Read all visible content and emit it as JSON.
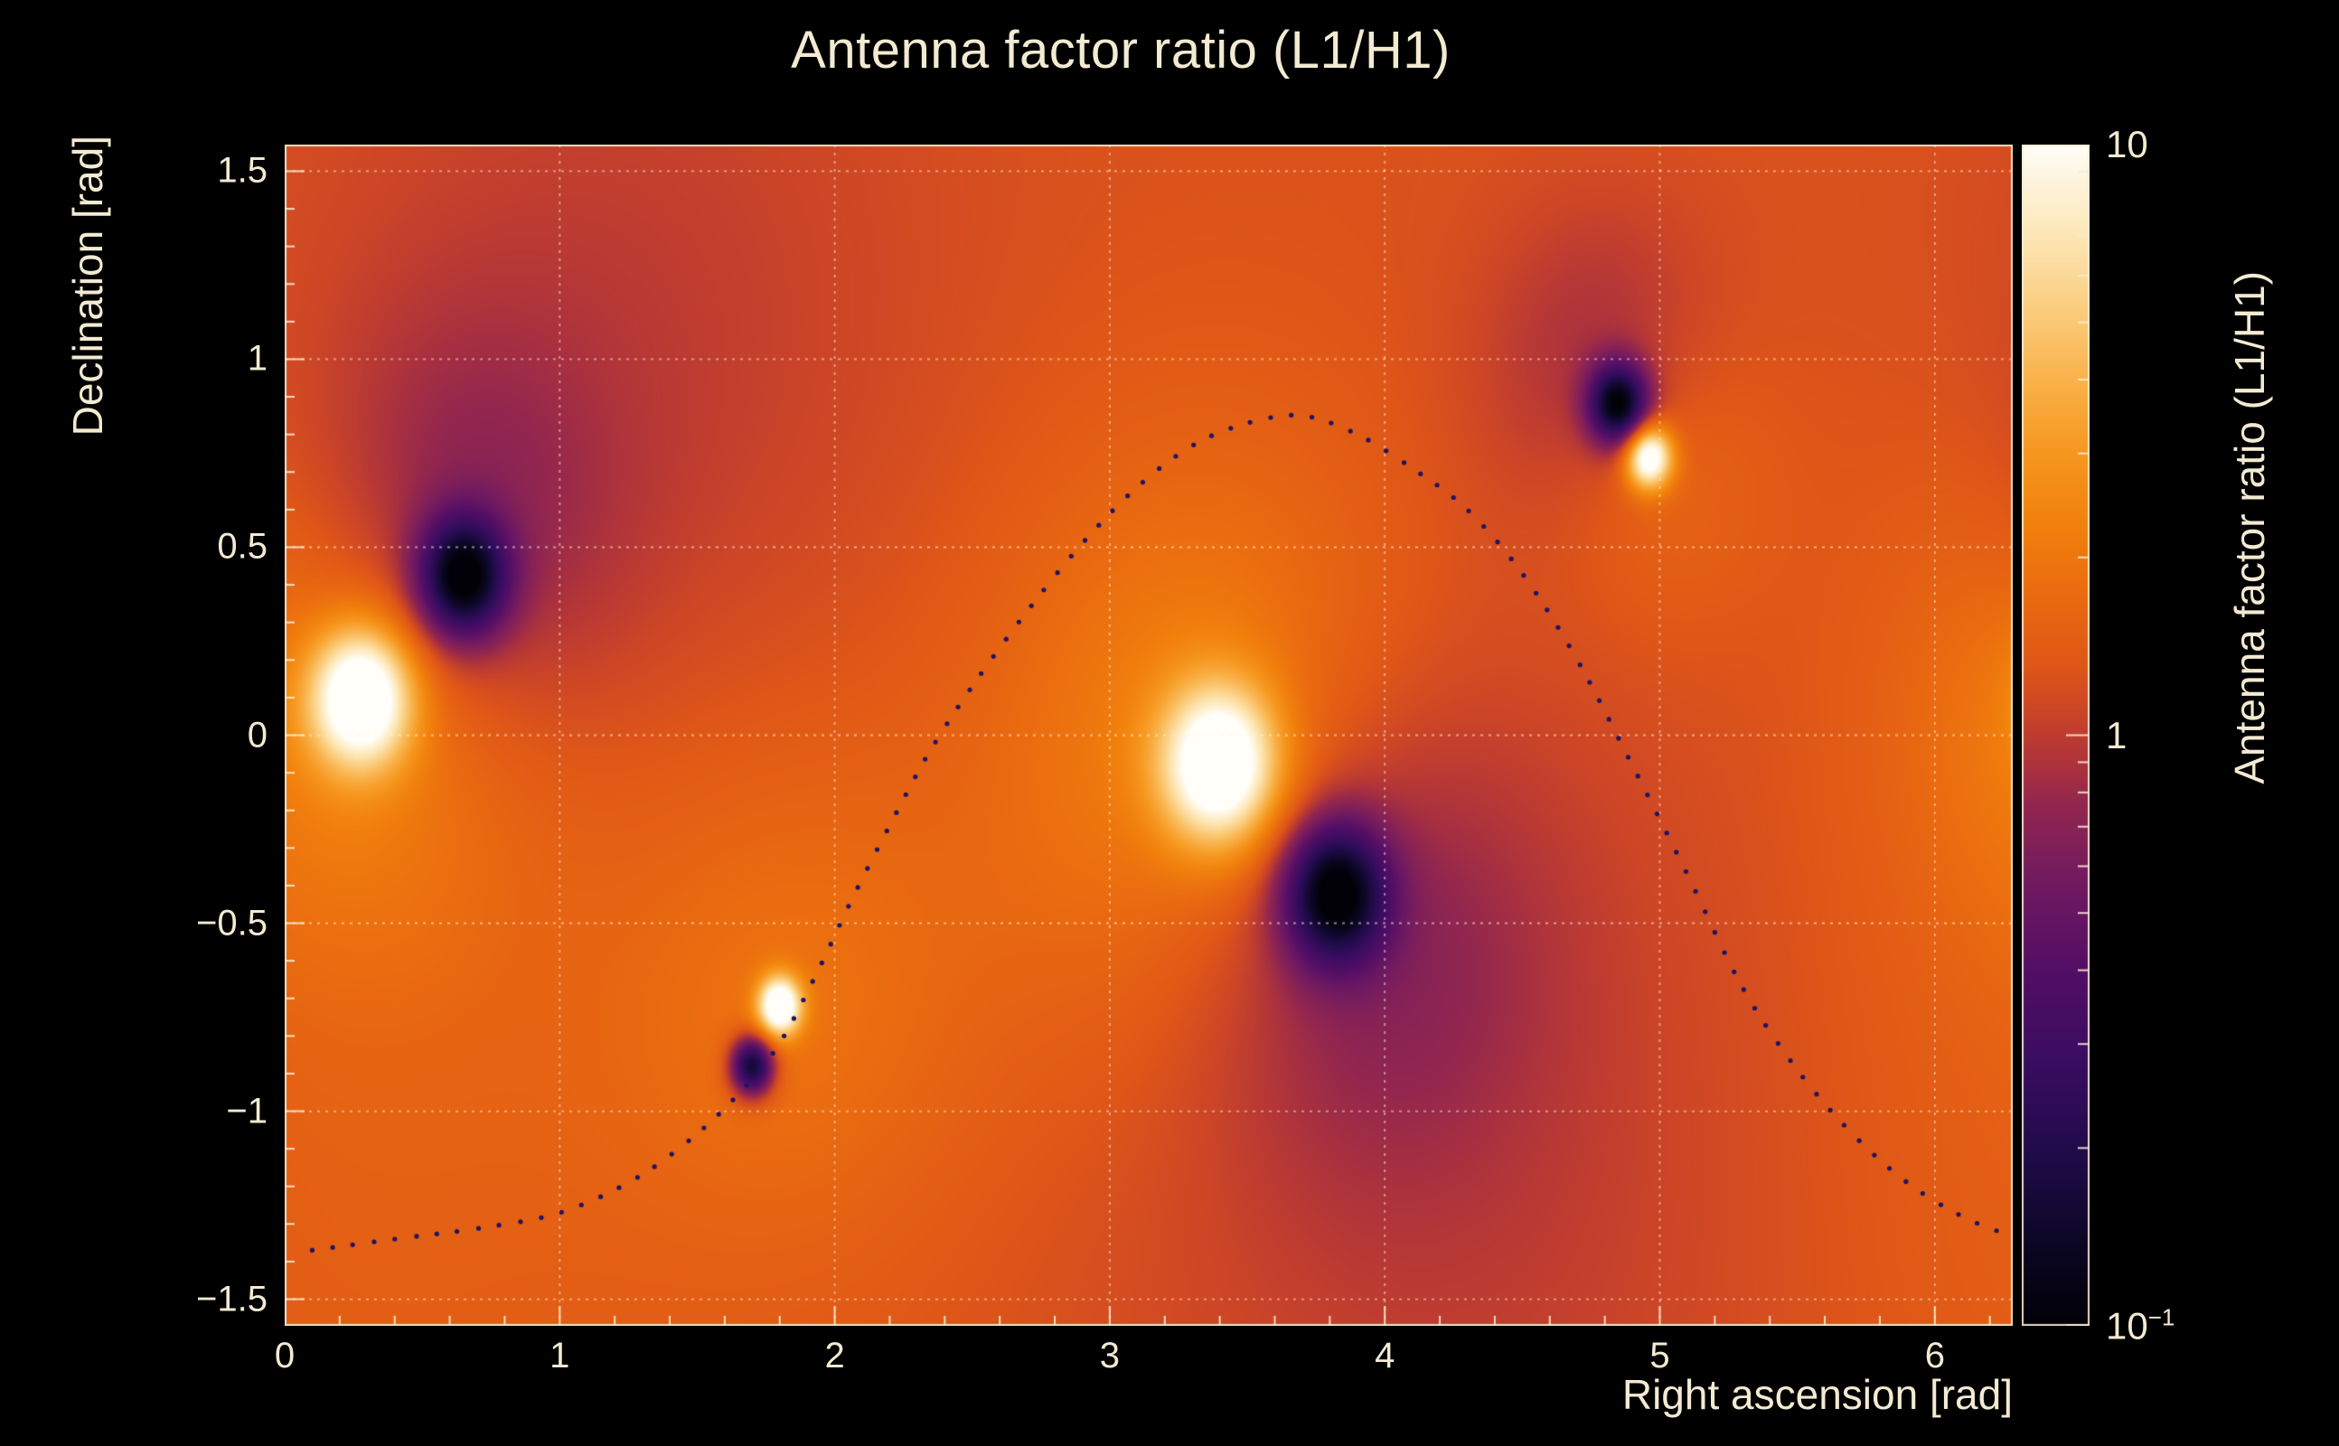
{
  "chart": {
    "title": "Antenna factor ratio (L1/H1)",
    "x_axis": {
      "title": "Right ascension [rad]",
      "range": [
        0,
        6.2832
      ],
      "ticks": [
        {
          "label": "0",
          "value": 0
        },
        {
          "label": "1",
          "value": 1
        },
        {
          "label": "2",
          "value": 2
        },
        {
          "label": "3",
          "value": 3
        },
        {
          "label": "4",
          "value": 4
        },
        {
          "label": "5",
          "value": 5
        },
        {
          "label": "6",
          "value": 6
        }
      ],
      "minor_step": 0.2,
      "grid_lines": [
        1,
        2,
        3,
        4,
        5,
        6
      ]
    },
    "y_axis": {
      "title": "Declination [rad]",
      "range": [
        -1.5708,
        1.5708
      ],
      "ticks": [
        {
          "label": "1.5",
          "value": 1.5
        },
        {
          "label": "1",
          "value": 1
        },
        {
          "label": "0.5",
          "value": 0.5
        },
        {
          "label": "0",
          "value": 0
        },
        {
          "label": "−0.5",
          "value": -0.5
        },
        {
          "label": "−1",
          "value": -1
        },
        {
          "label": "−1.5",
          "value": -1.5
        }
      ],
      "minor_step": 0.1,
      "grid_lines": [
        -1.5,
        -1,
        -0.5,
        0,
        0.5,
        1,
        1.5
      ]
    },
    "colorbar": {
      "title": "Antenna factor ratio (L1/H1)",
      "scale": "log",
      "min": 0.1,
      "max": 10,
      "ticks": [
        {
          "base": "10",
          "exp": "",
          "value": 10
        },
        {
          "base": "1",
          "exp": "",
          "value": 1
        },
        {
          "base": "10",
          "exp": "−1",
          "value": 0.1
        }
      ],
      "minor_tick_values": [
        0.2,
        0.3,
        0.4,
        0.5,
        0.6,
        0.7,
        0.8,
        0.9,
        2,
        3,
        4,
        5,
        6,
        7,
        8,
        9
      ]
    },
    "colors": {
      "background": "#000000",
      "text": "#f3ead2",
      "frame": "rgba(245,236,212,0.9)",
      "grid": "rgba(255,246,228,0.55)",
      "track_dot": "#1c1464"
    }
  },
  "chart_data": {
    "type": "heatmap",
    "title": "Antenna factor ratio (L1/H1)",
    "xlabel": "Right ascension [rad]",
    "ylabel": "Declination [rad]",
    "x_range": [
      0,
      6.2832
    ],
    "y_range": [
      -1.5708,
      1.5708
    ],
    "z_scale": {
      "type": "log",
      "min": 0.1,
      "max": 10
    },
    "base_value": 1.25,
    "base_log10": 0.1,
    "periodic_in_x": true,
    "extrema": {
      "maxima": [
        {
          "ra": 0.28,
          "dec": 0.1,
          "value": 10
        },
        {
          "ra": 1.8,
          "dec": -0.72,
          "value": 10
        },
        {
          "ra": 3.4,
          "dec": -0.08,
          "value": 10
        },
        {
          "ra": 4.96,
          "dec": 0.74,
          "value": 10
        }
      ],
      "minima": [
        {
          "ra": 0.65,
          "dec": 0.42,
          "value": 0.1
        },
        {
          "ra": 1.7,
          "dec": -0.88,
          "value": 0.1
        },
        {
          "ra": 3.82,
          "dec": -0.42,
          "value": 0.1
        },
        {
          "ra": 4.85,
          "dec": 0.88,
          "value": 0.1
        }
      ]
    },
    "features": [
      {
        "x": 0.28,
        "y": 0.1,
        "amp_log10": 1.05,
        "sigma_rad": 0.13
      },
      {
        "x": 0.28,
        "y": 0.1,
        "amp_log10": 0.3,
        "sigma_rad": 0.45
      },
      {
        "x": 0.65,
        "y": 0.42,
        "amp_log10": -1.05,
        "sigma_rad": 0.11
      },
      {
        "x": 0.6,
        "y": 0.5,
        "amp_log10": -0.3,
        "sigma_rad": 0.4
      },
      {
        "x": 1.8,
        "y": -0.72,
        "amp_log10": 1.05,
        "sigma_rad": 0.055
      },
      {
        "x": 1.7,
        "y": -0.88,
        "amp_log10": -1.05,
        "sigma_rad": 0.055
      },
      {
        "x": 1.85,
        "y": -0.7,
        "amp_log10": 0.16,
        "sigma_rad": 0.5
      },
      {
        "x": 3.4,
        "y": -0.08,
        "amp_log10": 1.05,
        "sigma_rad": 0.15
      },
      {
        "x": 3.35,
        "y": -0.05,
        "amp_log10": 0.3,
        "sigma_rad": 0.55
      },
      {
        "x": 3.82,
        "y": -0.42,
        "amp_log10": -1.05,
        "sigma_rad": 0.13
      },
      {
        "x": 3.9,
        "y": -0.5,
        "amp_log10": -0.28,
        "sigma_rad": 0.45
      },
      {
        "x": 4.85,
        "y": 0.88,
        "amp_log10": -1.05,
        "sigma_rad": 0.075
      },
      {
        "x": 4.8,
        "y": 0.95,
        "amp_log10": -0.22,
        "sigma_rad": 0.3
      },
      {
        "x": 4.96,
        "y": 0.74,
        "amp_log10": 1.05,
        "sigma_rad": 0.06
      },
      {
        "x": 4.98,
        "y": 0.72,
        "amp_log10": 0.18,
        "sigma_rad": 0.28
      },
      {
        "x": 1.2,
        "y": 1.05,
        "amp_log10": -0.1,
        "sigma_rad": 0.8
      },
      {
        "x": 4.35,
        "y": -1.15,
        "amp_log10": -0.1,
        "sigma_rad": 0.9
      },
      {
        "x": 0.3,
        "y": -1.0,
        "amp_log10": 0.08,
        "sigma_rad": 0.9
      }
    ],
    "track": {
      "style": "dotted",
      "dot_spacing_px": 22,
      "dot_radius_px": 2.6,
      "points": [
        [
          0.1,
          -1.37
        ],
        [
          0.4,
          -1.34
        ],
        [
          0.72,
          -1.31
        ],
        [
          1.0,
          -1.27
        ],
        [
          1.25,
          -1.19
        ],
        [
          1.45,
          -1.09
        ],
        [
          1.63,
          -0.97
        ],
        [
          1.79,
          -0.83
        ],
        [
          1.93,
          -0.64
        ],
        [
          2.06,
          -0.44
        ],
        [
          2.2,
          -0.24
        ],
        [
          2.34,
          -0.05
        ],
        [
          2.5,
          0.13
        ],
        [
          2.7,
          0.33
        ],
        [
          2.9,
          0.51
        ],
        [
          3.1,
          0.66
        ],
        [
          3.3,
          0.77
        ],
        [
          3.5,
          0.83
        ],
        [
          3.7,
          0.85
        ],
        [
          3.9,
          0.8
        ],
        [
          4.1,
          0.71
        ],
        [
          4.3,
          0.6
        ],
        [
          4.5,
          0.43
        ],
        [
          4.7,
          0.2
        ],
        [
          4.9,
          -0.08
        ],
        [
          5.1,
          -0.37
        ],
        [
          5.3,
          -0.67
        ],
        [
          5.5,
          -0.89
        ],
        [
          5.7,
          -1.06
        ],
        [
          5.9,
          -1.19
        ],
        [
          6.1,
          -1.28
        ],
        [
          6.27,
          -1.33
        ]
      ]
    },
    "colormap": {
      "scale": "log-normalized",
      "stops": [
        [
          0.0,
          "#020107"
        ],
        [
          0.07,
          "#0c0725"
        ],
        [
          0.14,
          "#1f0b48"
        ],
        [
          0.22,
          "#380d60"
        ],
        [
          0.3,
          "#530e66"
        ],
        [
          0.38,
          "#731b60"
        ],
        [
          0.44,
          "#92264f"
        ],
        [
          0.48,
          "#b0343a"
        ],
        [
          0.52,
          "#cc4527"
        ],
        [
          0.56,
          "#df5717"
        ],
        [
          0.62,
          "#ea6b10"
        ],
        [
          0.68,
          "#f1810c"
        ],
        [
          0.74,
          "#f69820"
        ],
        [
          0.8,
          "#f9b24a"
        ],
        [
          0.86,
          "#fbcd7e"
        ],
        [
          0.92,
          "#fde6b4"
        ],
        [
          1.0,
          "#fffef8"
        ]
      ]
    },
    "legend_position": "right-colorbar",
    "grid": true
  }
}
